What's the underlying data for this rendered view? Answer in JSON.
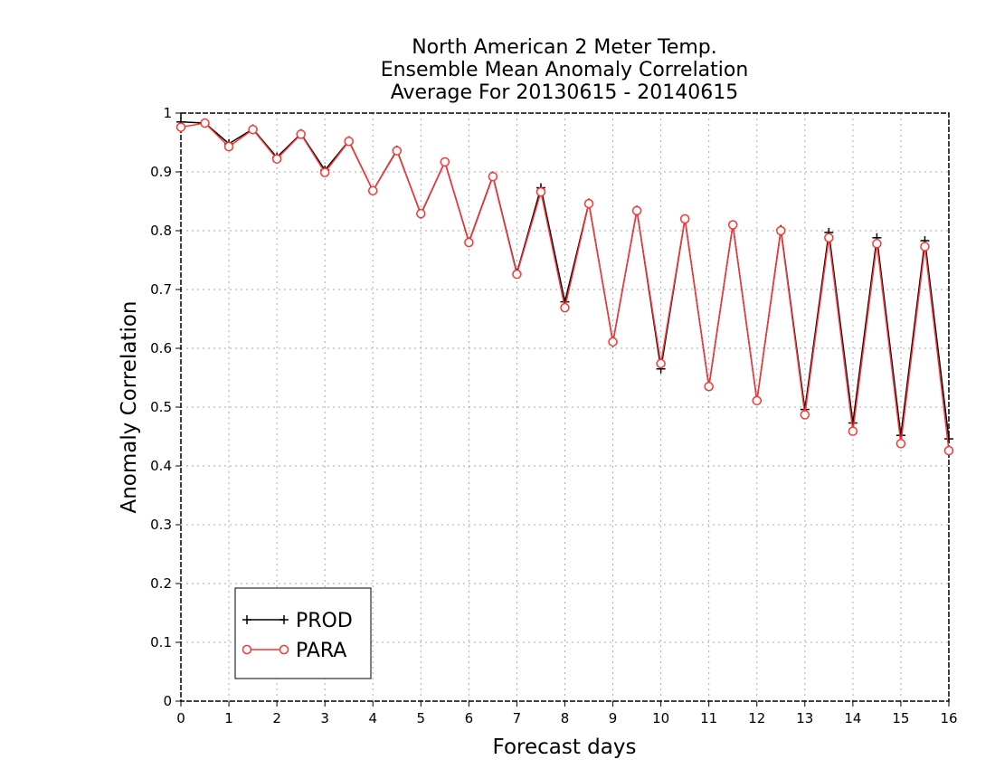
{
  "chart_data": {
    "type": "line",
    "title_lines": [
      "North American 2 Meter Temp.",
      "Ensemble Mean Anomaly Correlation",
      "Average For 20130615 - 20140615"
    ],
    "xlabel": "Forecast days",
    "ylabel": "Anomaly Correlation",
    "xlim": [
      0,
      16
    ],
    "ylim": [
      0,
      1
    ],
    "x_ticks": [
      "0",
      "1",
      "2",
      "3",
      "4",
      "5",
      "6",
      "7",
      "8",
      "9",
      "10",
      "11",
      "12",
      "13",
      "14",
      "15",
      "16"
    ],
    "y_ticks": [
      "0",
      "0.1",
      "0.2",
      "0.3",
      "0.4",
      "0.5",
      "0.6",
      "0.7",
      "0.8",
      "0.9",
      "1"
    ],
    "grid": true,
    "legend_position": "bottom-left",
    "x": [
      0,
      0.5,
      1,
      1.5,
      2,
      2.5,
      3,
      3.5,
      4,
      4.5,
      5,
      5.5,
      6,
      6.5,
      7,
      7.5,
      8,
      8.5,
      9,
      9.5,
      10,
      10.5,
      11,
      11.5,
      12,
      12.5,
      13,
      13.5,
      14,
      14.5,
      15,
      15.5,
      16
    ],
    "series": [
      {
        "name": "PROD",
        "color": "#000000",
        "marker": "plus",
        "values": [
          0.985,
          0.983,
          0.948,
          0.973,
          0.925,
          0.965,
          0.903,
          0.953,
          0.868,
          0.937,
          0.828,
          0.917,
          0.781,
          0.893,
          0.728,
          0.873,
          0.679,
          0.847,
          0.61,
          0.835,
          0.565,
          0.82,
          0.535,
          0.81,
          0.511,
          0.802,
          0.496,
          0.797,
          0.473,
          0.788,
          0.452,
          0.783,
          0.446
        ]
      },
      {
        "name": "PARA",
        "color": "#ff3333",
        "marker": "circle",
        "values": [
          0.976,
          0.983,
          0.943,
          0.972,
          0.922,
          0.964,
          0.899,
          0.952,
          0.868,
          0.936,
          0.829,
          0.917,
          0.78,
          0.892,
          0.726,
          0.866,
          0.669,
          0.846,
          0.611,
          0.834,
          0.574,
          0.82,
          0.535,
          0.81,
          0.511,
          0.8,
          0.487,
          0.788,
          0.459,
          0.778,
          0.438,
          0.773,
          0.426
        ]
      }
    ]
  }
}
